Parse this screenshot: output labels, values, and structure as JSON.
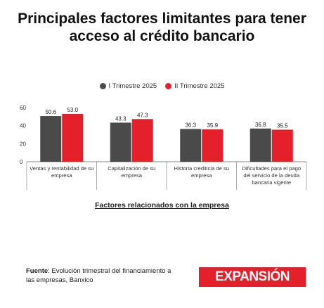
{
  "title": "Principales factores limitantes para tener acceso al crédito bancario",
  "legend": [
    {
      "label": "I Trimestre 2025",
      "color": "#4a4a4a"
    },
    {
      "label": "II Trimestre 2025",
      "color": "#e4212b"
    }
  ],
  "source_label": "Fuente",
  "source_text": ": Evolución trimestral del financiamiento a las empresas, Banxico",
  "logo_text": "EXPANSIÓN",
  "chart_data": {
    "type": "bar",
    "title": "Principales factores limitantes para tener acceso al crédito bancario",
    "xlabel": "Factores relacionados con la empresa",
    "ylabel": "",
    "ylim": [
      0,
      60
    ],
    "yticks": [
      0,
      20,
      40,
      60
    ],
    "grid": false,
    "legend_position": "top-center",
    "categories": [
      "Ventas y rentabilidad de su empresa",
      "Capitalización de su empresa",
      "Historia crediticia de su empresa",
      "Dificultades para el pago del servicio de la deuda bancaria vigente"
    ],
    "series": [
      {
        "name": "I Trimestre 2025",
        "color": "#4a4a4a",
        "values": [
          50.6,
          43.3,
          36.3,
          36.8
        ]
      },
      {
        "name": "II Trimestre 2025",
        "color": "#e4212b",
        "values": [
          53.0,
          47.3,
          35.9,
          35.5
        ]
      }
    ]
  }
}
